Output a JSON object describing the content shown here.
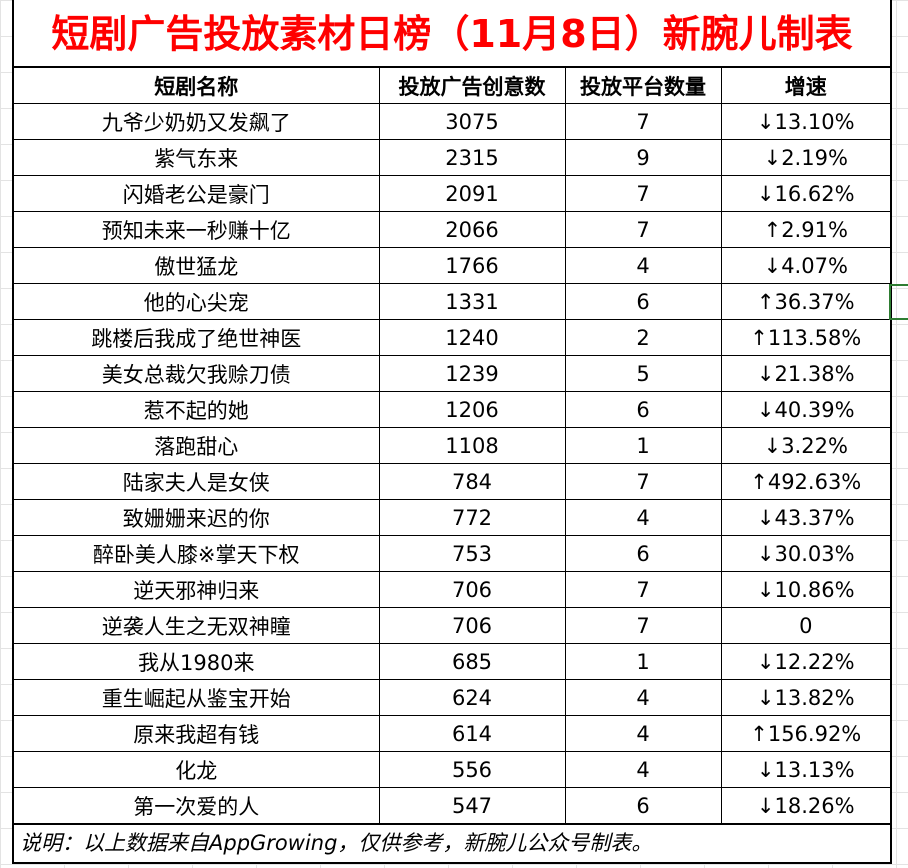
{
  "title": "短剧广告投放素材日榜（11月8日）新腕儿制表",
  "headers": [
    "短剧名称",
    "投放广告创意数",
    "投放平台数量",
    "增速"
  ],
  "rows": [
    {
      "name": "九爷少奶奶又发飙了",
      "creatives": "3075",
      "platforms": "7",
      "growth": "↓13.10%"
    },
    {
      "name": "紫气东来",
      "creatives": "2315",
      "platforms": "9",
      "growth": "↓2.19%"
    },
    {
      "name": "闪婚老公是豪门",
      "creatives": "2091",
      "platforms": "7",
      "growth": "↓16.62%"
    },
    {
      "name": "预知未来一秒赚十亿",
      "creatives": "2066",
      "platforms": "7",
      "growth": "↑2.91%"
    },
    {
      "name": "傲世猛龙",
      "creatives": "1766",
      "platforms": "4",
      "growth": "↓4.07%"
    },
    {
      "name": "他的心尖宠",
      "creatives": "1331",
      "platforms": "6",
      "growth": "↑36.37%"
    },
    {
      "name": "跳楼后我成了绝世神医",
      "creatives": "1240",
      "platforms": "2",
      "growth": "↑113.58%"
    },
    {
      "name": "美女总裁欠我赊刀债",
      "creatives": "1239",
      "platforms": "5",
      "growth": "↓21.38%"
    },
    {
      "name": "惹不起的她",
      "creatives": "1206",
      "platforms": "6",
      "growth": "↓40.39%"
    },
    {
      "name": "落跑甜心",
      "creatives": "1108",
      "platforms": "1",
      "growth": "↓3.22%"
    },
    {
      "name": "陆家夫人是女侠",
      "creatives": "784",
      "platforms": "7",
      "growth": "↑492.63%"
    },
    {
      "name": "致姗姗来迟的你",
      "creatives": "772",
      "platforms": "4",
      "growth": "↓43.37%"
    },
    {
      "name": "醉卧美人膝※掌天下权",
      "creatives": "753",
      "platforms": "6",
      "growth": "↓30.03%"
    },
    {
      "name": "逆天邪神归来",
      "creatives": "706",
      "platforms": "7",
      "growth": "↓10.86%"
    },
    {
      "name": "逆袭人生之无双神瞳",
      "creatives": "706",
      "platforms": "7",
      "growth": "0"
    },
    {
      "name": "我从1980来",
      "creatives": "685",
      "platforms": "1",
      "growth": "↓12.22%"
    },
    {
      "name": "重生崛起从鉴宝开始",
      "creatives": "624",
      "platforms": "4",
      "growth": "↓13.82%"
    },
    {
      "name": "原来我超有钱",
      "creatives": "614",
      "platforms": "4",
      "growth": "↑156.92%"
    },
    {
      "name": "化龙",
      "creatives": "556",
      "platforms": "4",
      "growth": "↓13.13%"
    },
    {
      "name": "第一次爱的人",
      "creatives": "547",
      "platforms": "6",
      "growth": "↓18.26%"
    }
  ],
  "note": "说明：以上数据来自AppGrowing，仅供参考，新腕儿公众号制表。",
  "colors": {
    "title": "#ff0000",
    "border": "#000000",
    "selection": "#2e7d32"
  }
}
